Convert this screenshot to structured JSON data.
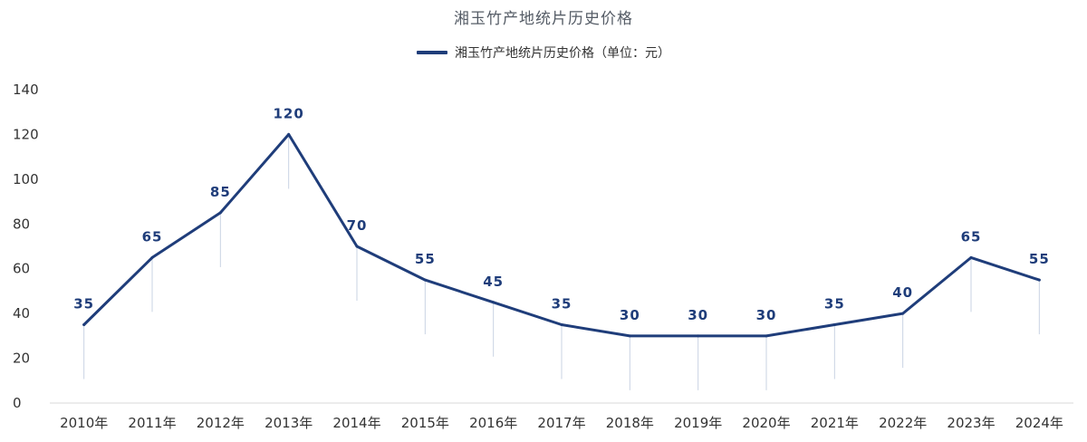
{
  "chart_data": {
    "type": "line",
    "title": "湘玉竹产地统片历史价格",
    "categories": [
      "2010年",
      "2011年",
      "2012年",
      "2013年",
      "2014年",
      "2015年",
      "2016年",
      "2017年",
      "2018年",
      "2019年",
      "2020年",
      "2021年",
      "2022年",
      "2023年",
      "2024年"
    ],
    "series": [
      {
        "name": "湘玉竹产地统片历史价格（单位：元）",
        "values": [
          35,
          65,
          85,
          120,
          70,
          55,
          45,
          35,
          30,
          30,
          30,
          35,
          40,
          65,
          55
        ]
      }
    ],
    "ylim": [
      0,
      140
    ],
    "yticks": [
      0,
      20,
      40,
      60,
      80,
      100,
      120,
      140
    ],
    "xlabel": "",
    "ylabel": "",
    "legend": "top-center",
    "grid": false,
    "line_color": "#1f3d7a",
    "drop_line_color": "#c9d3e3"
  }
}
